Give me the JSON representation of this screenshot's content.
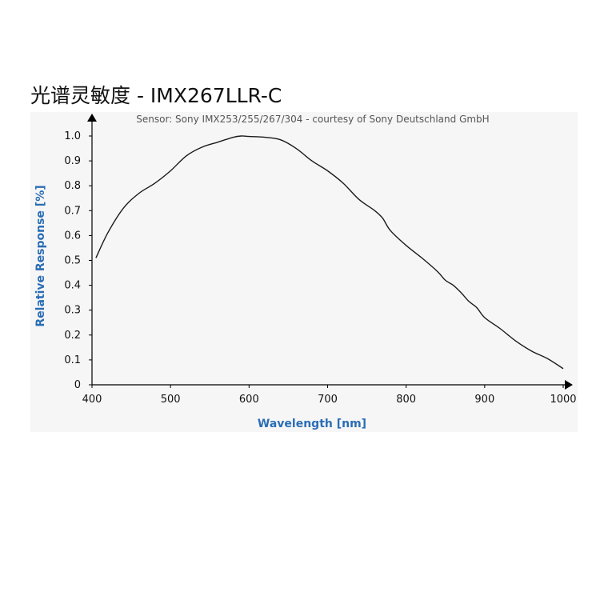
{
  "chart_data": {
    "type": "line",
    "title": "光谱灵敏度 - IMX267LLR-C",
    "subtitle": "Sensor: Sony IMX253/255/267/304 - courtesy of Sony Deutschland GmbH",
    "xlabel": "Wavelength [nm]",
    "ylabel": "Relative Response [%]",
    "xlim": [
      400,
      1000
    ],
    "ylim": [
      0,
      1.0
    ],
    "x_ticks": [
      "400",
      "500",
      "600",
      "700",
      "800",
      "900",
      "1000"
    ],
    "y_ticks": [
      "0",
      "0.1",
      "0.2",
      "0.3",
      "0.4",
      "0.5",
      "0.6",
      "0.7",
      "0.8",
      "0.9",
      "1.0"
    ],
    "grid": false,
    "series": [
      {
        "name": "",
        "color": "#1a1a1a",
        "x": [
          405,
          420,
          440,
          460,
          480,
          500,
          520,
          540,
          560,
          580,
          590,
          600,
          620,
          640,
          660,
          680,
          700,
          720,
          740,
          760,
          770,
          780,
          800,
          820,
          840,
          850,
          860,
          870,
          880,
          890,
          900,
          920,
          940,
          960,
          980,
          1000
        ],
        "y": [
          0.51,
          0.61,
          0.71,
          0.77,
          0.81,
          0.86,
          0.92,
          0.955,
          0.975,
          0.995,
          1.0,
          0.998,
          0.995,
          0.985,
          0.95,
          0.9,
          0.86,
          0.81,
          0.745,
          0.7,
          0.67,
          0.62,
          0.56,
          0.51,
          0.455,
          0.42,
          0.4,
          0.37,
          0.335,
          0.31,
          0.27,
          0.225,
          0.175,
          0.135,
          0.105,
          0.065
        ]
      }
    ]
  }
}
